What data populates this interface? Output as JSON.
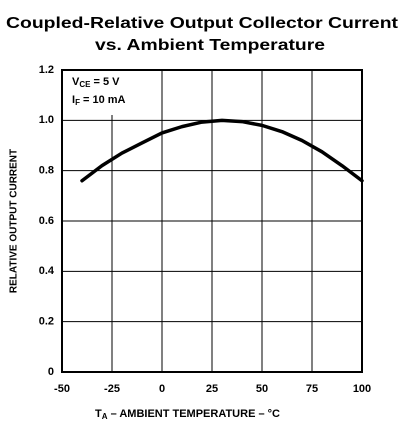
{
  "chart_data": {
    "type": "line",
    "title": [
      "Coupled-Relative Output Collector Current",
      "vs. Ambient Temperature"
    ],
    "annotations": [
      {
        "main": "V",
        "sub": "CE",
        "rest": " = 5 V"
      },
      {
        "main": "I",
        "sub": "F",
        "rest": " = 10 mA"
      }
    ],
    "x_label": {
      "main": "T",
      "sub": "A",
      "rest": " – AMBIENT TEMPERATURE – °C"
    },
    "y_label": "RELATIVE OUTPUT CURRENT",
    "x": [
      -40,
      -30,
      -20,
      -10,
      0,
      10,
      20,
      30,
      40,
      50,
      60,
      70,
      80,
      90,
      100
    ],
    "series": [
      {
        "color": "#000000",
        "values": [
          0.76,
          0.82,
          0.87,
          0.91,
          0.95,
          0.975,
          0.993,
          1.0,
          0.995,
          0.98,
          0.955,
          0.92,
          0.875,
          0.82,
          0.76
        ]
      }
    ],
    "xlim": [
      -50,
      100
    ],
    "ylim": [
      0,
      1.2
    ],
    "xticks": [
      -50,
      -25,
      0,
      25,
      50,
      75,
      100
    ],
    "yticks": [
      0,
      0.2,
      0.4,
      0.6,
      0.8,
      {
        "value": 1,
        "label": "1.0"
      },
      1.2
    ],
    "grid": true
  }
}
